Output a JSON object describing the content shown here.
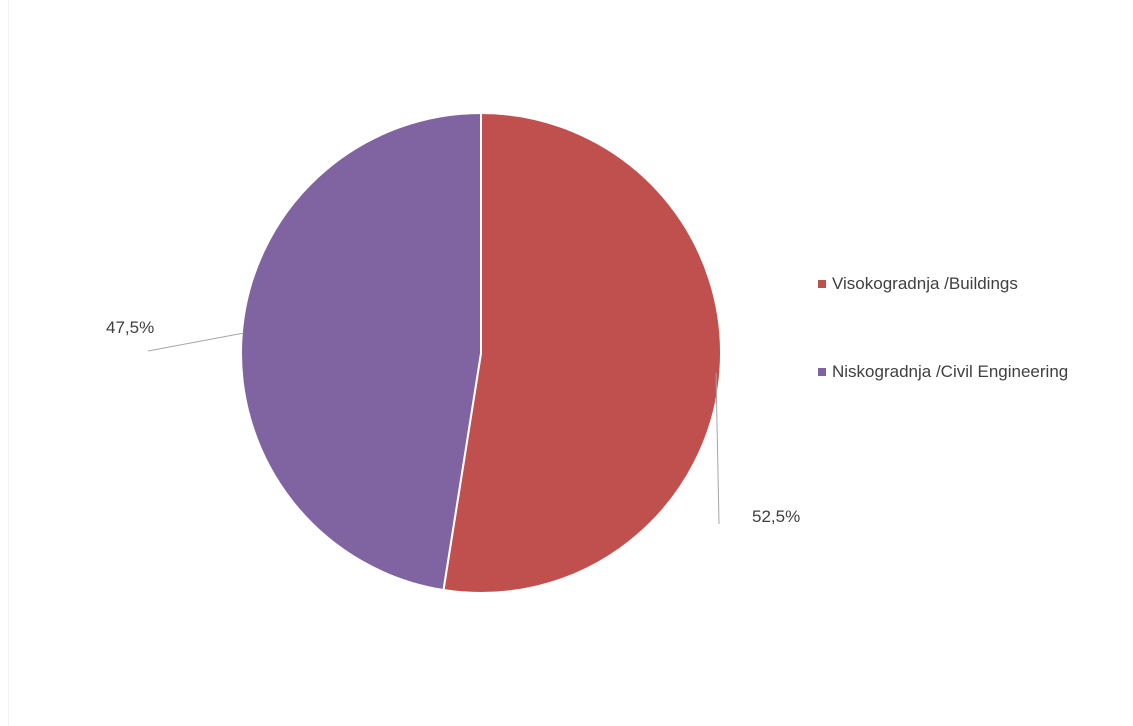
{
  "chart_data": {
    "type": "pie",
    "title": "",
    "categories": [
      "Visokogradnja /Buildings",
      "Niskogradnja /Civil Engineering"
    ],
    "values": [
      52.5,
      47.5
    ],
    "data_labels": [
      "52,5%",
      "47,5%"
    ],
    "colors": [
      "#C0504D",
      "#8064A2"
    ],
    "start_angle": "12 o'clock, clockwise",
    "legend_position": "right",
    "label_style": "outside with leader lines"
  }
}
